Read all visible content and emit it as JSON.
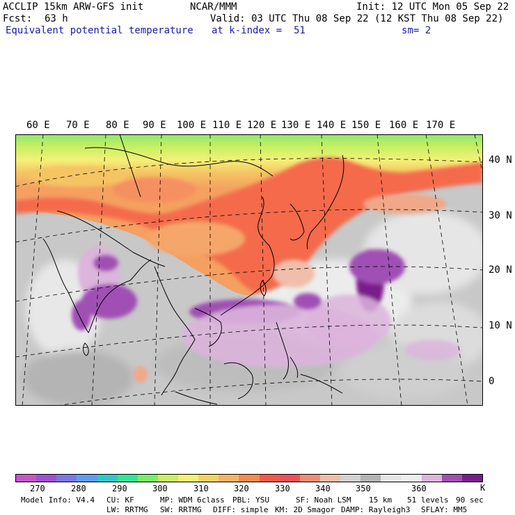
{
  "header": {
    "model": "ACCLIP 15km ARW-GFS init",
    "org": "NCAR/MMM",
    "init": "Init: 12 UTC Mon 05 Sep 22",
    "fcst_label": "Fcst:",
    "fcst_value": "63 h",
    "valid": "Valid: 03 UTC Thu 08 Sep 22 (12 KST Thu 08 Sep 22)",
    "field": "Equivalent potential temperature",
    "level": "at k-index =  51",
    "smooth": "sm= 2"
  },
  "map": {
    "lon_labels": [
      "60 E",
      "70 E",
      "80 E",
      "90 E",
      "100 E",
      "110 E",
      "120 E",
      "130 E",
      "140 E",
      "150 E",
      "160 E",
      "170 E"
    ],
    "lat_labels": [
      "40 N",
      "30 N",
      "20 N",
      "10 N",
      "0"
    ],
    "region": "East Asia / Western Pacific"
  },
  "colorbar": {
    "colors": [
      "#c855c8",
      "#a050d2",
      "#7a78e2",
      "#5e9ef0",
      "#30c8c8",
      "#32e696",
      "#78f064",
      "#c8f064",
      "#f5f078",
      "#f5d264",
      "#f5b464",
      "#f58c50",
      "#f55a46",
      "#f0505a",
      "#f08c78",
      "#f0beaa",
      "#d2d2d2",
      "#b4b4b4",
      "#e6e6e6",
      "#f0f0f0",
      "#dcb4dc",
      "#a050b4",
      "#7a1e8c"
    ],
    "ticks": [
      "270",
      "280",
      "290",
      "300",
      "310",
      "320",
      "330",
      "340",
      "350",
      "360"
    ],
    "unit": "K"
  },
  "footer": {
    "line1": [
      "Model Info: V4.4",
      "CU: KF",
      "MP: WDM 6class",
      "PBL: YSU",
      "SF: Noah LSM",
      "15 km",
      "51 levels",
      "90 sec"
    ],
    "line2": [
      "LW: RRTMG",
      "SW: RRTMG",
      "DIFF: simple",
      "KM: 2D Smagor",
      "DAMP: Rayleigh3",
      "SFLAY: MM5"
    ]
  }
}
